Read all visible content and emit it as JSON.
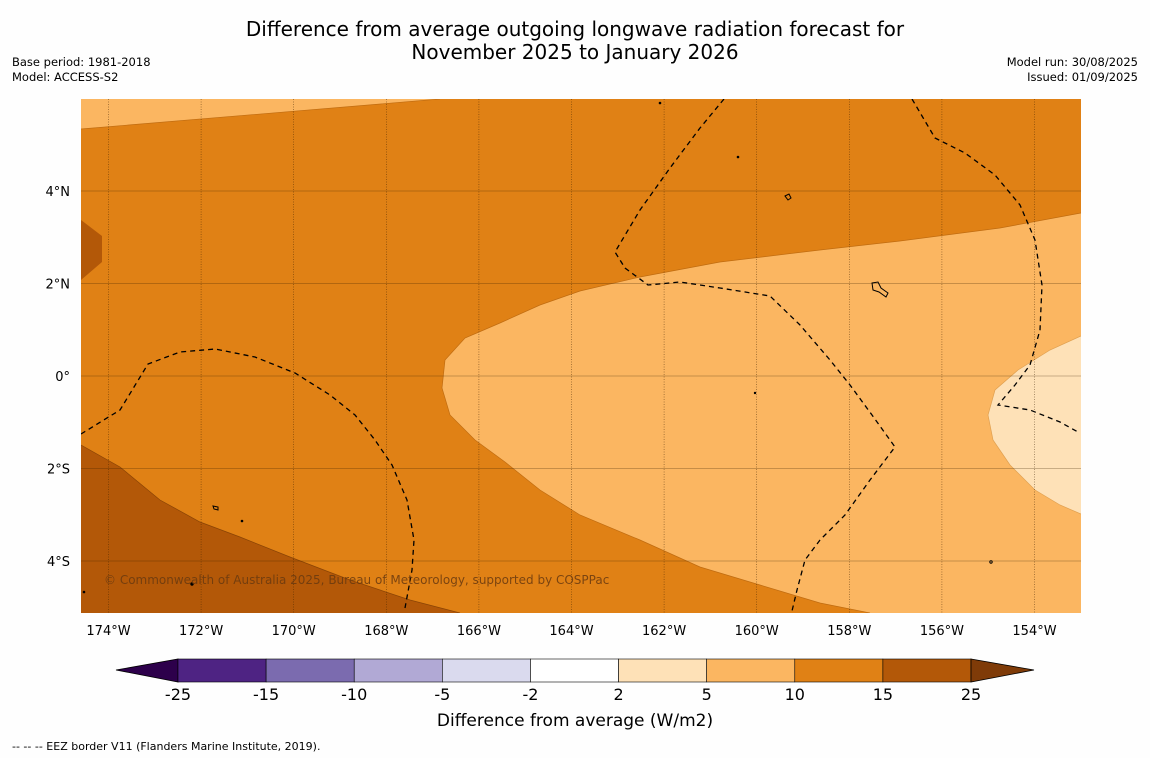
{
  "title_line1": "Difference from average outgoing longwave radiation forecast for",
  "title_line2": "November 2025 to January 2026",
  "meta_left": {
    "base_period": "Base period: 1981-2018",
    "model": "Model: ACCESS-S2"
  },
  "meta_right": {
    "model_run": "Model run: 30/08/2025",
    "issued": "Issued: 01/09/2025"
  },
  "copyright": "© Commonwealth of Australia 2025, Bureau of Meteorology, supported by COSPPac",
  "footer": "--  --  -- EEZ border V11 (Flanders Marine Institute, 2019).",
  "longitude_labels": [
    "174°W",
    "172°W",
    "170°W",
    "168°W",
    "166°W",
    "164°W",
    "162°W",
    "160°W",
    "158°W",
    "156°W",
    "154°W"
  ],
  "latitude_labels": [
    "4°N",
    "2°N",
    "0°",
    "2°S",
    "4°S"
  ],
  "colorbar": {
    "title": "Difference from average (W/m2)",
    "tick_labels": [
      "-25",
      "-15",
      "-10",
      "-5",
      "-2",
      "2",
      "5",
      "10",
      "15",
      "25"
    ],
    "colors": [
      "#4e2383",
      "#7b6baf",
      "#b1a9d5",
      "#dadaee",
      "#ffffff",
      "#fee1b7",
      "#fbb661",
      "#e08115",
      "#b35808"
    ],
    "under_color": "#2d004b",
    "over_color": "#7f3b08"
  },
  "legend_colors": {
    "band_2_5": "#fee1b7",
    "band_5_10": "#fbb661",
    "band_10_15": "#e08115",
    "band_15_25": "#b35808"
  }
}
